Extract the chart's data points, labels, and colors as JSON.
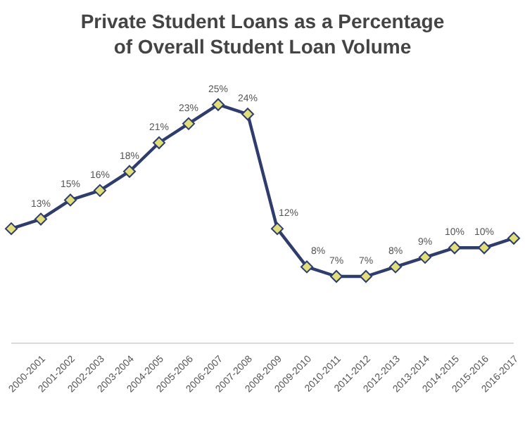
{
  "chart_data": {
    "type": "line",
    "title": "Private Student Loans as a Percentage of Overall Student Loan Volume",
    "categories": [
      null,
      "2000-2001",
      "2001-2002",
      "2002-2003",
      "2003-2004",
      "2004-2005",
      "2005-2006",
      "2006-2007",
      "2007-2008",
      "2008-2009",
      "2009-2010",
      "2010-2011",
      "2011-2012",
      "2012-2013",
      "2013-2014",
      "2014-2015",
      "2015-2016",
      "2016-2017"
    ],
    "series": [
      {
        "color": "#2e3d6b",
        "values": [
          12,
          13,
          15,
          16,
          18,
          21,
          23,
          25,
          24,
          12,
          8,
          7,
          7,
          8,
          9,
          10,
          10,
          11
        ],
        "value_labels": [
          null,
          "13%",
          "15%",
          "16%",
          "18%",
          "21%",
          "23%",
          "25%",
          "24%",
          "12%",
          "8%",
          "7%",
          "7%",
          "8%",
          "9%",
          "10%",
          "10%",
          null
        ]
      }
    ],
    "tick_labels": "x",
    "marker": "diamond",
    "line_style": "solid",
    "legend": false
  }
}
